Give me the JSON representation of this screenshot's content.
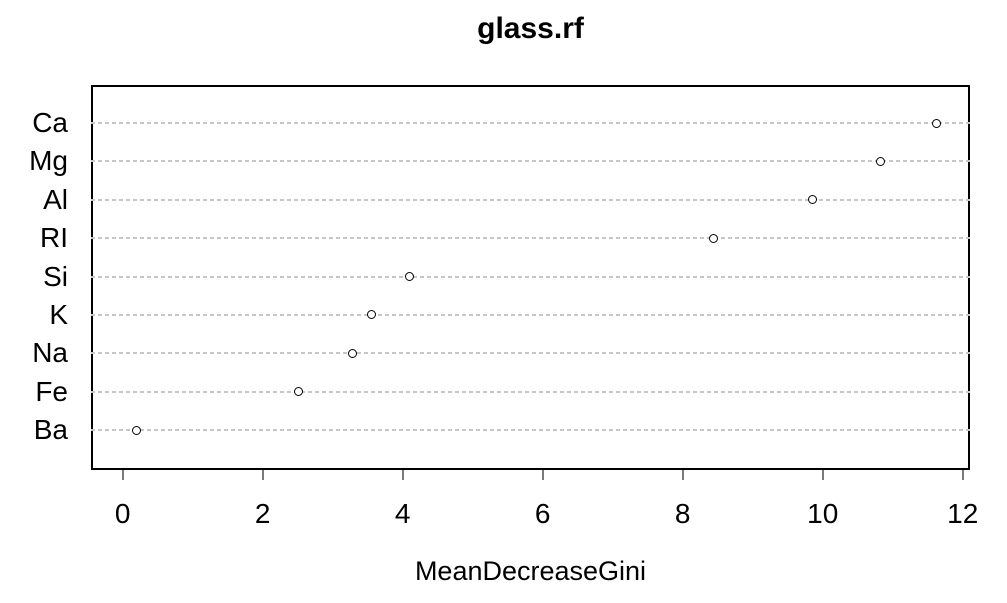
{
  "chart_data": {
    "type": "scatter",
    "variant": "dotchart-horizontal",
    "title": "glass.rf",
    "xlabel": "MeanDecreaseGini",
    "ylabel": "",
    "categories": [
      "Ca",
      "Mg",
      "Al",
      "RI",
      "Si",
      "K",
      "Na",
      "Fe",
      "Ba"
    ],
    "values": [
      11.62,
      10.83,
      9.86,
      8.44,
      4.1,
      3.55,
      3.28,
      2.51,
      0.19
    ],
    "xticks": [
      0,
      2,
      4,
      6,
      8,
      10,
      12
    ],
    "xlim": [
      -0.453,
      12.104
    ],
    "grid": "horizontal dashed line per category",
    "legend": "none",
    "colors": {
      "background": "#ffffff",
      "text": "#000000",
      "box_border": "#000000",
      "gridline": "#c6c6c6",
      "tick_mark": "#7a7a7a",
      "point_stroke": "#000000",
      "point_fill": "#ffffff"
    }
  }
}
